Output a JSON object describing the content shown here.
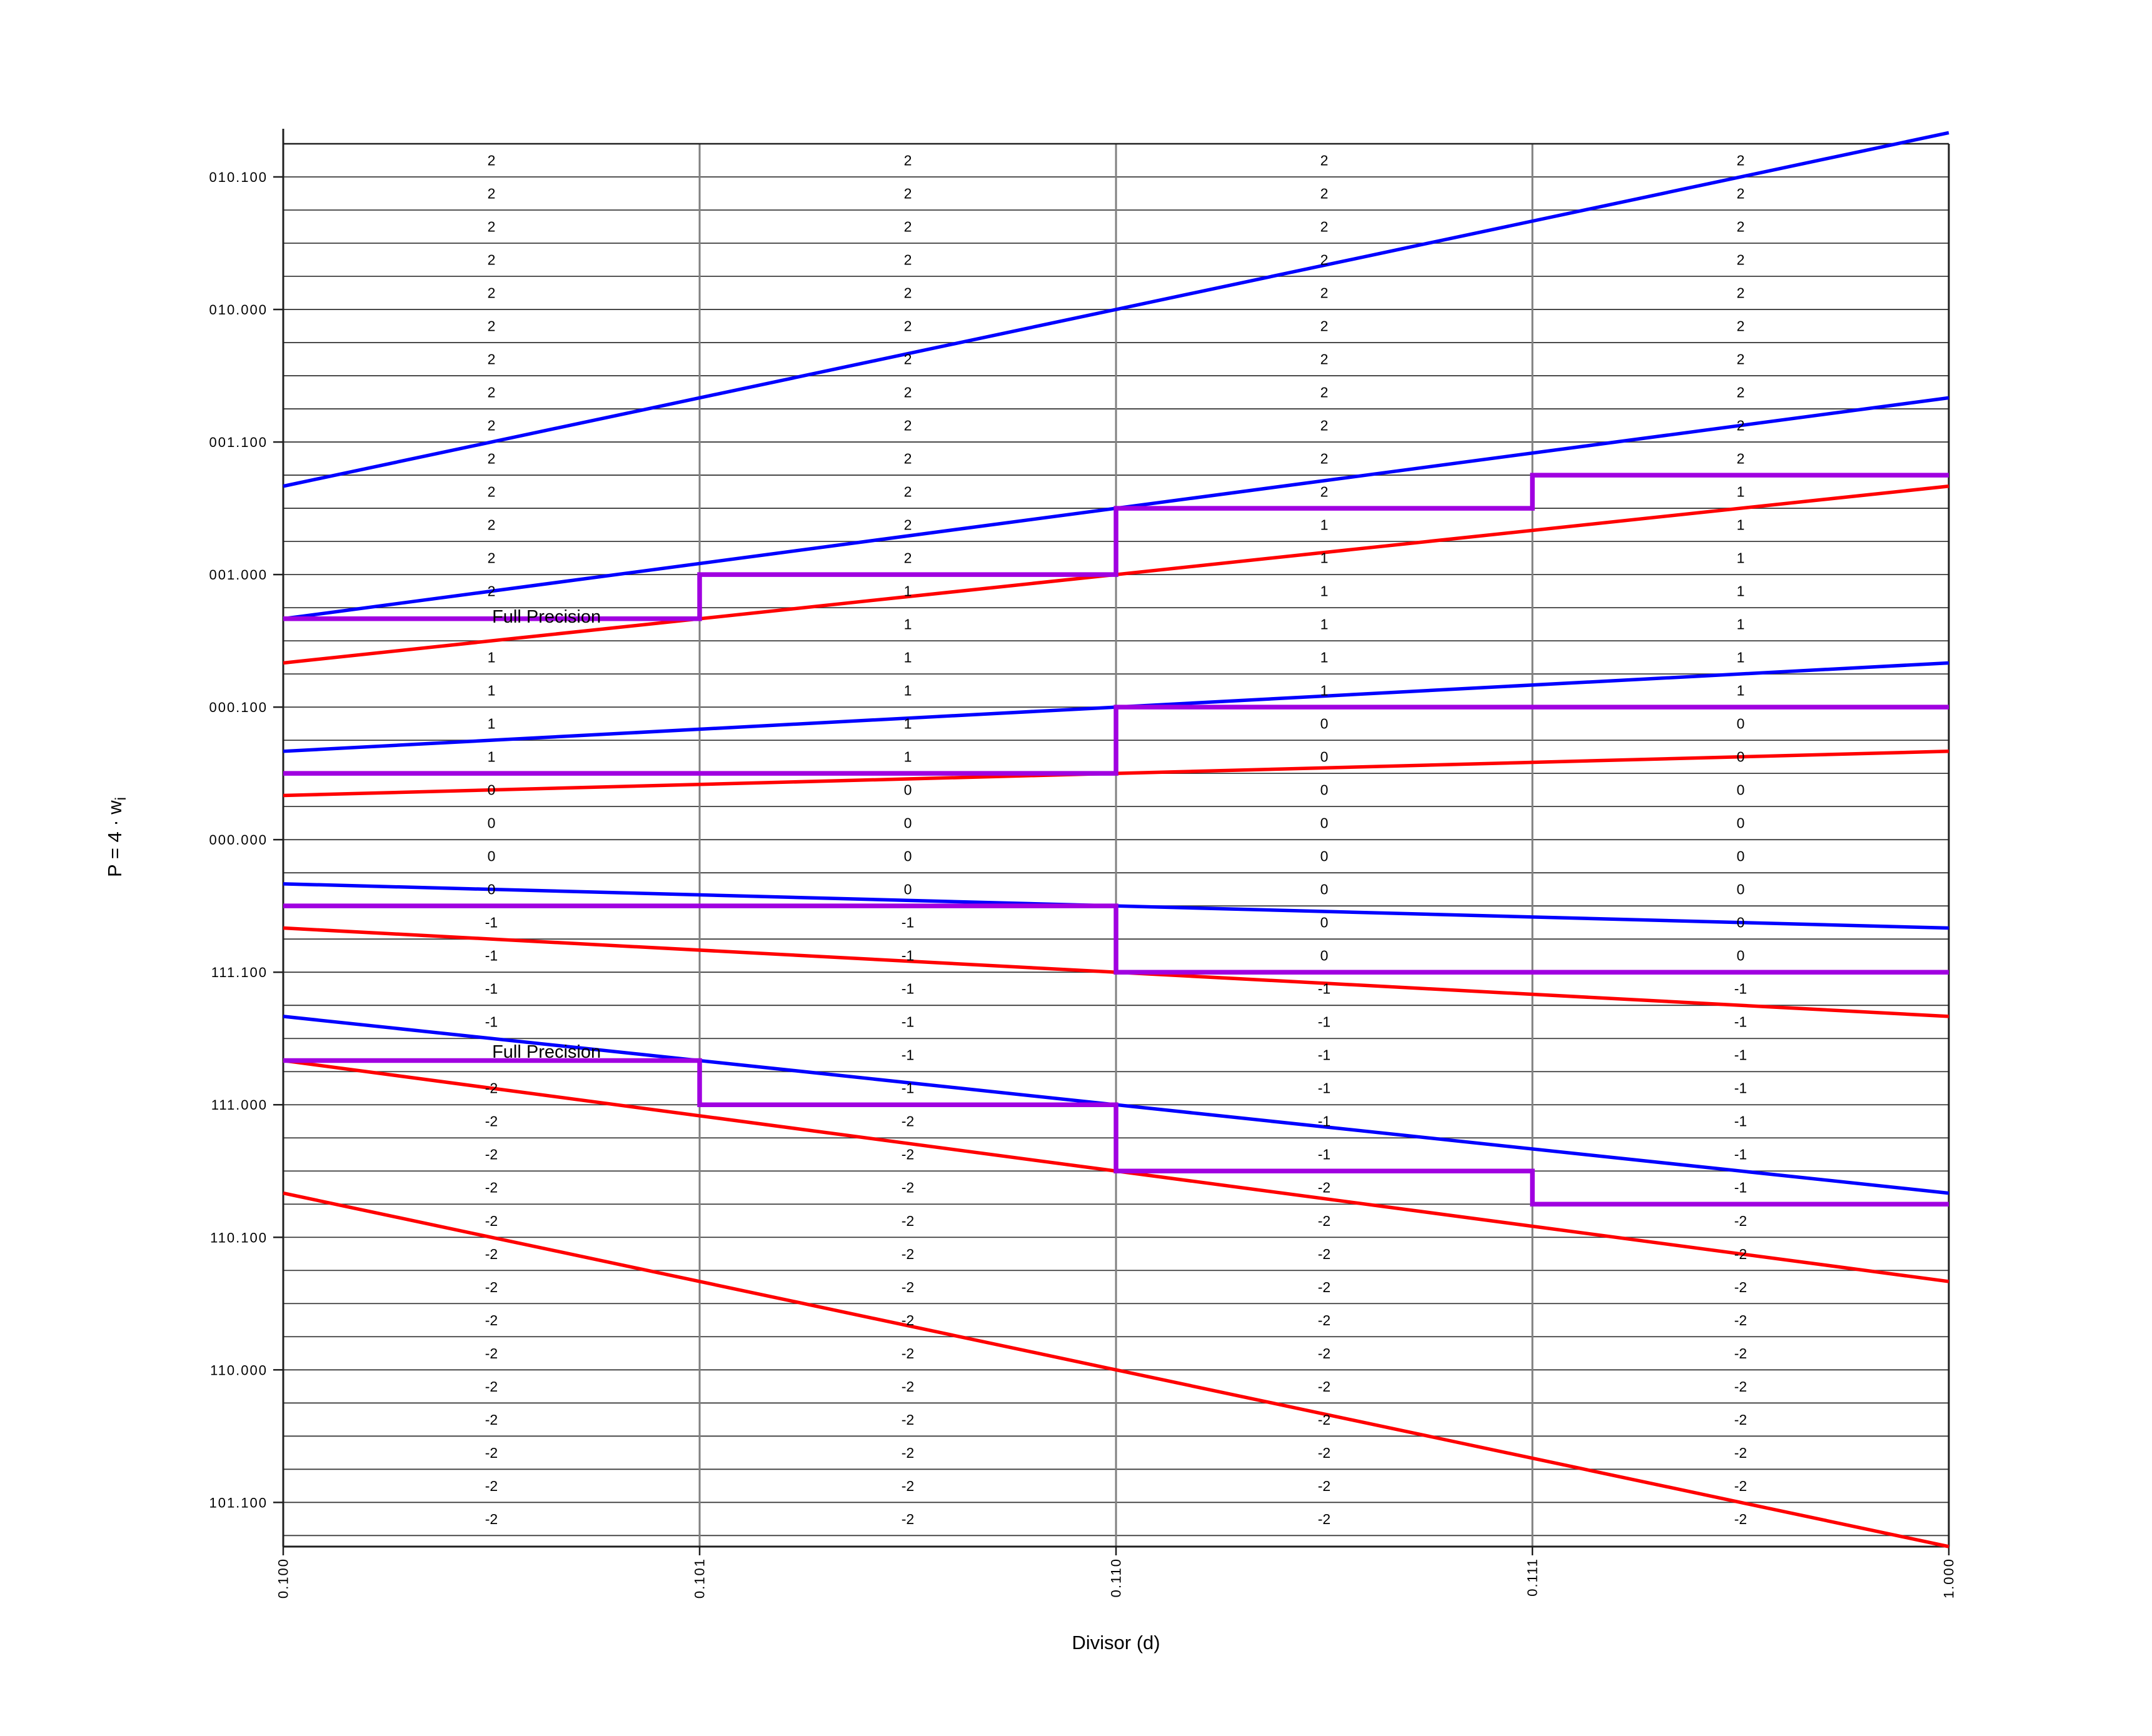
{
  "chart_data": {
    "type": "line",
    "title": "",
    "xlabel": "Divisor (d)",
    "ylabel": {
      "main": "P = 4 · w",
      "sub": "i"
    },
    "x_axis": {
      "min": 0.5,
      "max": 1.0,
      "ticks": [
        {
          "label": "0.100",
          "value": 0.5
        },
        {
          "label": "0.101",
          "value": 0.625
        },
        {
          "label": "0.110",
          "value": 0.75
        },
        {
          "label": "0.111",
          "value": 0.875
        },
        {
          "label": "1.000",
          "value": 1.0
        }
      ]
    },
    "y_axis": {
      "min": -2.666667,
      "max": 2.625,
      "grid_step": 0.125,
      "grid_min": -2.625,
      "grid_max": 2.5,
      "ticks": [
        {
          "label": "010.100",
          "value": 2.5
        },
        {
          "label": "010.000",
          "value": 2.0
        },
        {
          "label": "001.100",
          "value": 1.5
        },
        {
          "label": "001.000",
          "value": 1.0
        },
        {
          "label": "000.100",
          "value": 0.5
        },
        {
          "label": "000.000",
          "value": 0.0
        },
        {
          "label": "111.100",
          "value": -0.5
        },
        {
          "label": "111.000",
          "value": -1.0
        },
        {
          "label": "110.100",
          "value": -1.5
        },
        {
          "label": "110.000",
          "value": -2.0
        },
        {
          "label": "101.100",
          "value": -2.5
        }
      ]
    },
    "blue_lines": {
      "color": "#0000FF",
      "meaning": "upper digit-selection bounds U(k) = (k + 2/3)d, k = 2,1,0,-1,-2",
      "slopes": [
        2.666667,
        1.666667,
        0.666667,
        -0.333333,
        -1.333333
      ]
    },
    "red_lines": {
      "color": "#FF0000",
      "meaning": "lower digit-selection bounds L(k) = (k - 2/3)d, k = 2,1,0,-1,-2",
      "slopes": [
        1.333333,
        0.333333,
        -0.666667,
        -1.666667,
        -2.666667
      ]
    },
    "staircases": {
      "color": "#A000E0",
      "paths": [
        [
          {
            "d0": 0.5,
            "d1": 0.625,
            "p": 0.833333
          },
          {
            "d0": 0.625,
            "d1": 0.75,
            "p": 1.0
          },
          {
            "d0": 0.75,
            "d1": 0.875,
            "p": 1.25
          },
          {
            "d0": 0.875,
            "d1": 1.0,
            "p": 1.375
          }
        ],
        [
          {
            "d0": 0.5,
            "d1": 0.75,
            "p": 0.25
          },
          {
            "d0": 0.75,
            "d1": 1.0,
            "p": 0.5
          }
        ],
        [
          {
            "d0": 0.5,
            "d1": 0.75,
            "p": -0.25
          },
          {
            "d0": 0.75,
            "d1": 1.0,
            "p": -0.5
          }
        ],
        [
          {
            "d0": 0.5,
            "d1": 0.625,
            "p": -0.833333
          },
          {
            "d0": 0.625,
            "d1": 0.75,
            "p": -1.0
          },
          {
            "d0": 0.75,
            "d1": 0.875,
            "p": -1.25
          },
          {
            "d0": 0.875,
            "d1": 1.0,
            "p": -1.375
          }
        ]
      ]
    },
    "annotations": [
      {
        "text": "Full Precision",
        "d": 0.5627,
        "p": 0.84
      },
      {
        "text": "Full Precision",
        "d": 0.5627,
        "p": -0.801
      }
    ],
    "cells": {
      "row_centers": [
        2.5625,
        2.4375,
        2.3125,
        2.1875,
        2.0625,
        1.9375,
        1.8125,
        1.6875,
        1.5625,
        1.4375,
        1.3125,
        1.1875,
        1.0625,
        0.9375,
        0.8125,
        0.6875,
        0.5625,
        0.4375,
        0.3125,
        0.1875,
        0.0625,
        -0.0625,
        -0.1875,
        -0.3125,
        -0.4375,
        -0.5625,
        -0.6875,
        -0.8125,
        -0.9375,
        -1.0625,
        -1.1875,
        -1.3125,
        -1.4375,
        -1.5625,
        -1.6875,
        -1.8125,
        -1.9375,
        -2.0625,
        -2.1875,
        -2.3125,
        -2.4375,
        -2.5625
      ],
      "columns": [
        {
          "d_range": [
            0.5,
            0.625
          ],
          "digits": [
            "2",
            "2",
            "2",
            "2",
            "2",
            "2",
            "2",
            "2",
            "2",
            "2",
            "2",
            "2",
            "2",
            "2",
            "",
            "1",
            "1",
            "1",
            "1",
            "0",
            "0",
            "0",
            "0",
            "-1",
            "-1",
            "-1",
            "-1",
            "",
            "-2",
            "-2",
            "-2",
            "-2",
            "-2",
            "-2",
            "-2",
            "-2",
            "-2",
            "-2",
            "-2",
            "-2",
            "-2",
            "-2"
          ]
        },
        {
          "d_range": [
            0.625,
            0.75
          ],
          "digits": [
            "2",
            "2",
            "2",
            "2",
            "2",
            "2",
            "2",
            "2",
            "2",
            "2",
            "2",
            "2",
            "2",
            "1",
            "1",
            "1",
            "1",
            "1",
            "1",
            "0",
            "0",
            "0",
            "0",
            "-1",
            "-1",
            "-1",
            "-1",
            "-1",
            "-1",
            "-2",
            "-2",
            "-2",
            "-2",
            "-2",
            "-2",
            "-2",
            "-2",
            "-2",
            "-2",
            "-2",
            "-2",
            "-2"
          ]
        },
        {
          "d_range": [
            0.75,
            0.875
          ],
          "digits": [
            "2",
            "2",
            "2",
            "2",
            "2",
            "2",
            "2",
            "2",
            "2",
            "2",
            "2",
            "1",
            "1",
            "1",
            "1",
            "1",
            "1",
            "0",
            "0",
            "0",
            "0",
            "0",
            "0",
            "0",
            "0",
            "-1",
            "-1",
            "-1",
            "-1",
            "-1",
            "-1",
            "-2",
            "-2",
            "-2",
            "-2",
            "-2",
            "-2",
            "-2",
            "-2",
            "-2",
            "-2",
            "-2"
          ]
        },
        {
          "d_range": [
            0.875,
            1.0
          ],
          "digits": [
            "2",
            "2",
            "2",
            "2",
            "2",
            "2",
            "2",
            "2",
            "2",
            "2",
            "1",
            "1",
            "1",
            "1",
            "1",
            "1",
            "1",
            "0",
            "0",
            "0",
            "0",
            "0",
            "0",
            "0",
            "0",
            "-1",
            "-1",
            "-1",
            "-1",
            "-1",
            "-1",
            "-1",
            "-2",
            "-2",
            "-2",
            "-2",
            "-2",
            "-2",
            "-2",
            "-2",
            "-2",
            "-2"
          ]
        }
      ]
    },
    "grid_colors": {
      "horizontal": "#3c3c3c",
      "vertical": "#808080",
      "frame": "#1f1f1f"
    }
  }
}
